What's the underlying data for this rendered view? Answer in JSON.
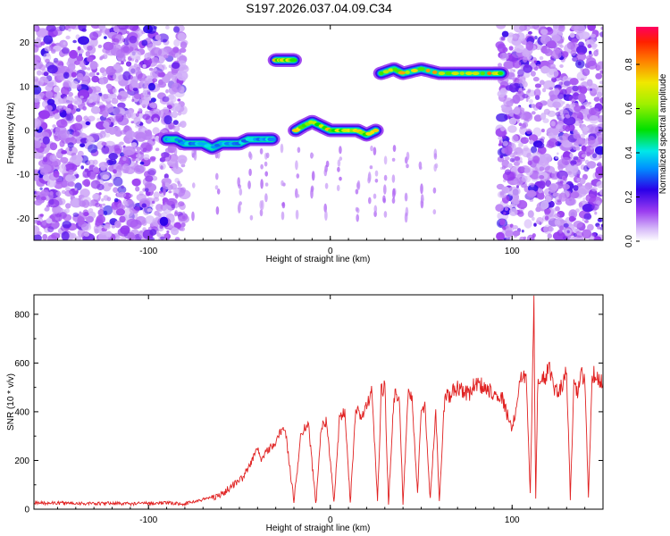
{
  "chart_data": [
    {
      "type": "heatmap",
      "title": "S197.2026.037.04.09.C34",
      "xlabel": "Height of straight line (km)",
      "ylabel": "Frequency (Hz)",
      "xlim": [
        -163,
        150
      ],
      "ylim": [
        -25,
        24
      ],
      "xticks": [
        -100,
        0,
        100
      ],
      "xtick_labels": [
        "-100",
        "0",
        "100"
      ],
      "yticks": [
        -20,
        -10,
        0,
        10,
        20
      ],
      "ytick_labels": [
        "-20",
        "-10",
        "0",
        "10",
        "20"
      ],
      "colorbar": {
        "label": "Normalized spectral amplitude",
        "range": [
          0,
          0.97
        ],
        "ticks": [
          0.0,
          0.2,
          0.4,
          0.6,
          0.8
        ],
        "tick_labels": [
          "0.0",
          "0.2",
          "0.4",
          "0.6",
          "0.8"
        ],
        "colormap": [
          "#ffffff",
          "#9b3cf0",
          "#2a00e8",
          "#00d8ff",
          "#00e000",
          "#e8e800",
          "#ff6a00",
          "#ff0040"
        ]
      },
      "noise_regions": [
        {
          "x_range": [
            -163,
            -80
          ],
          "y_range": [
            -25,
            24
          ],
          "density": 0.9
        },
        {
          "x_range": [
            93,
            150
          ],
          "y_range": [
            -25,
            24
          ],
          "density": 0.9
        }
      ],
      "signal_segments": [
        {
          "x": [
            -90,
            -85,
            -80,
            -75,
            -70,
            -65,
            -60,
            -55,
            -50,
            -45,
            -40,
            -35,
            -32
          ],
          "y": [
            -2,
            -2,
            -3,
            -3,
            -3,
            -4,
            -3,
            -3,
            -3,
            -2,
            -2,
            -2,
            -2
          ],
          "peak": 0.45
        },
        {
          "x": [
            -30,
            -28,
            -26,
            -24,
            -22,
            -20
          ],
          "y": [
            16,
            16,
            16,
            16,
            16,
            16
          ],
          "peak": 0.8
        },
        {
          "x": [
            -19,
            -15,
            -10,
            -5,
            0,
            5,
            10,
            15,
            20,
            25
          ],
          "y": [
            0,
            1,
            2,
            1,
            0,
            0,
            0,
            0,
            -1,
            0
          ],
          "peak": 0.8
        },
        {
          "x": [
            28,
            35,
            40,
            50,
            60,
            70,
            80,
            90,
            94
          ],
          "y": [
            13,
            14,
            13,
            14,
            13,
            13,
            13,
            13,
            13
          ],
          "peak": 0.85
        }
      ]
    },
    {
      "type": "line",
      "xlabel": "Height of straight line (km)",
      "ylabel": "SNR (10 * v/v)",
      "xlim": [
        -163,
        150
      ],
      "ylim": [
        0,
        880
      ],
      "xticks": [
        -100,
        0,
        100
      ],
      "xtick_labels": [
        "-100",
        "0",
        "100"
      ],
      "yticks": [
        0,
        200,
        400,
        600,
        800
      ],
      "ytick_labels": [
        "0",
        "200",
        "400",
        "600",
        "800"
      ],
      "series": [
        {
          "name": "SNR",
          "color": "#e02020",
          "x": [
            -163,
            -150,
            -140,
            -130,
            -120,
            -110,
            -100,
            -90,
            -80,
            -70,
            -65,
            -60,
            -55,
            -50,
            -48,
            -45,
            -40,
            -38,
            -35,
            -30,
            -28,
            -25,
            -20,
            -16,
            -12,
            -8,
            -5,
            -2,
            2,
            5,
            8,
            11,
            14,
            17,
            20,
            23,
            26,
            28,
            30,
            32,
            35,
            38,
            40,
            43,
            45,
            48,
            50,
            52,
            55,
            58,
            60,
            63,
            66,
            68,
            70,
            73,
            76,
            80,
            85,
            90,
            95,
            100,
            103,
            105,
            108,
            110,
            112,
            113,
            114,
            116,
            118,
            120,
            123,
            126,
            130,
            132,
            134,
            136,
            138,
            140,
            142,
            144,
            146,
            150
          ],
          "y": [
            25,
            25,
            25,
            22,
            25,
            22,
            25,
            25,
            22,
            40,
            50,
            60,
            90,
            120,
            130,
            170,
            250,
            200,
            240,
            270,
            310,
            340,
            30,
            320,
            350,
            20,
            330,
            370,
            25,
            360,
            400,
            25,
            410,
            380,
            420,
            480,
            30,
            480,
            500,
            20,
            470,
            460,
            25,
            490,
            450,
            60,
            420,
            420,
            40,
            410,
            30,
            470,
            460,
            490,
            500,
            490,
            470,
            520,
            500,
            480,
            450,
            320,
            460,
            560,
            520,
            60,
            840,
            40,
            490,
            560,
            540,
            580,
            500,
            480,
            560,
            50,
            500,
            480,
            560,
            520,
            50,
            560,
            540,
            520
          ]
        }
      ]
    }
  ]
}
